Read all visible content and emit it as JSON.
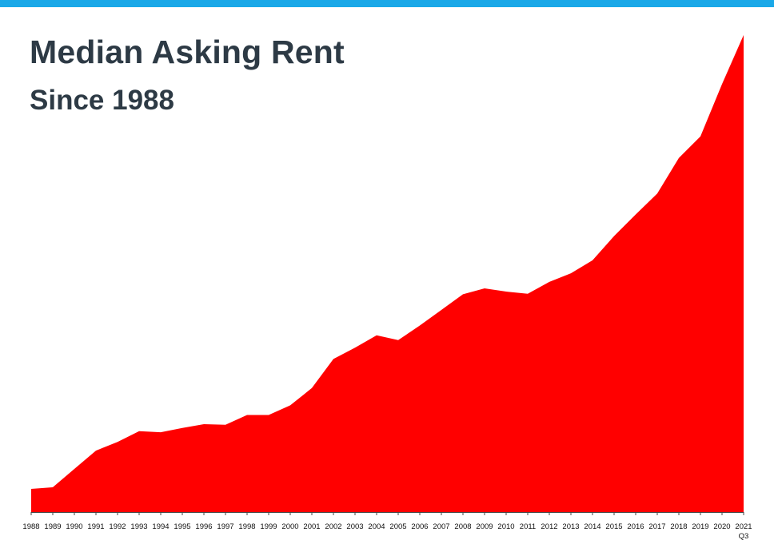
{
  "header": {
    "title": "Median Asking Rent",
    "subtitle": "Since 1988",
    "accent_color": "#1aa8e8"
  },
  "chart_data": {
    "type": "area",
    "title": "Median Asking Rent",
    "subtitle": "Since 1988",
    "xlabel": "",
    "ylabel": "",
    "grid": false,
    "legend": "none",
    "fill_color": "#ff0000",
    "categories": [
      "1988",
      "1989",
      "1990",
      "1991",
      "1992",
      "1993",
      "1994",
      "1995",
      "1996",
      "1997",
      "1998",
      "1999",
      "2000",
      "2001",
      "2002",
      "2003",
      "2004",
      "2005",
      "2006",
      "2007",
      "2008",
      "2009",
      "2010",
      "2011",
      "2012",
      "2013",
      "2014",
      "2015",
      "2016",
      "2017",
      "2018",
      "2019",
      "2020",
      "2021"
    ],
    "last_category_note": "Q3",
    "values": [
      343,
      346,
      380,
      414,
      430,
      450,
      448,
      456,
      463,
      462,
      480,
      480,
      498,
      530,
      584,
      605,
      628,
      619,
      646,
      675,
      704,
      715,
      709,
      705,
      727,
      743,
      767,
      812,
      852,
      891,
      957,
      997,
      1094,
      1185
    ],
    "ylim": [
      300,
      1250
    ]
  }
}
